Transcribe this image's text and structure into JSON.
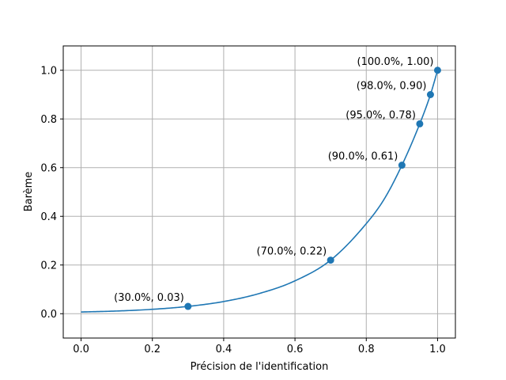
{
  "chart_data": {
    "type": "line",
    "xlabel": "Précision de l'identification",
    "ylabel": "Barème",
    "xlim": [
      -0.05,
      1.05
    ],
    "ylim": [
      -0.1,
      1.1
    ],
    "x_ticks": [
      0.0,
      0.2,
      0.4,
      0.6,
      0.8,
      1.0
    ],
    "x_tick_labels": [
      "0.0",
      "0.2",
      "0.4",
      "0.6",
      "0.8",
      "1.0"
    ],
    "y_ticks": [
      0.0,
      0.2,
      0.4,
      0.6,
      0.8,
      1.0
    ],
    "y_tick_labels": [
      "0.0",
      "0.2",
      "0.4",
      "0.6",
      "0.8",
      "1.0"
    ],
    "grid": true,
    "line_color": "#1f77b4",
    "curve": {
      "x": [
        0.0,
        0.1,
        0.2,
        0.3,
        0.4,
        0.5,
        0.6,
        0.7,
        0.8,
        0.85,
        0.9,
        0.95,
        0.98,
        1.0
      ],
      "y": [
        0.007,
        0.011,
        0.018,
        0.03,
        0.05,
        0.083,
        0.135,
        0.22,
        0.37,
        0.47,
        0.61,
        0.78,
        0.9,
        1.0
      ]
    },
    "points": [
      {
        "x": 0.3,
        "y": 0.03,
        "label": "(30.0%, 0.03)"
      },
      {
        "x": 0.7,
        "y": 0.22,
        "label": "(70.0%, 0.22)"
      },
      {
        "x": 0.9,
        "y": 0.61,
        "label": "(90.0%, 0.61)"
      },
      {
        "x": 0.95,
        "y": 0.78,
        "label": "(95.0%, 0.78)"
      },
      {
        "x": 0.98,
        "y": 0.9,
        "label": "(98.0%, 0.90)"
      },
      {
        "x": 1.0,
        "y": 1.0,
        "label": "(100.0%, 1.00)"
      }
    ]
  }
}
